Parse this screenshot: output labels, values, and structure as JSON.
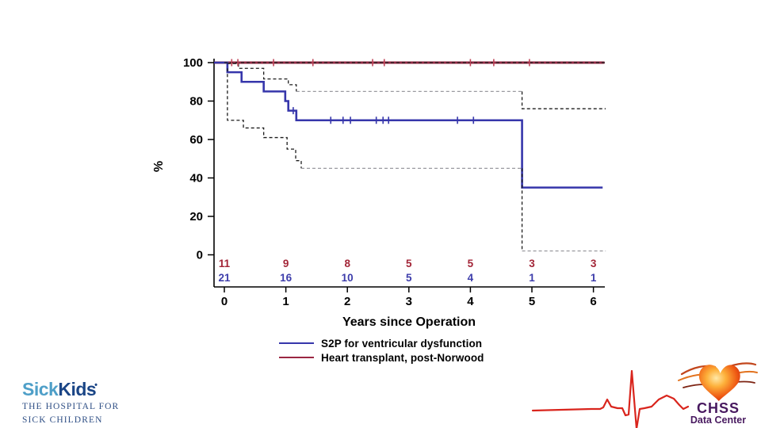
{
  "chart_data": {
    "type": "line",
    "subtype": "kaplan-meier-step",
    "title": "",
    "xlabel": "Years since Operation",
    "ylabel": "%",
    "xlim": [
      0,
      6.3
    ],
    "ylim": [
      0,
      100
    ],
    "xticks": [
      0,
      1,
      2,
      3,
      4,
      5,
      6
    ],
    "yticks": [
      0,
      20,
      40,
      60,
      80,
      100
    ],
    "grid": false,
    "series": [
      {
        "name": "Heart transplant, post-Norwood",
        "data_name": "survival-curve-transplant",
        "color": "#8f2742",
        "censor_color": "#c04458",
        "width": 3,
        "steps": [
          [
            0,
            100
          ]
        ],
        "end_x": 6.18,
        "censor_marks": [
          [
            0.12,
            100
          ],
          [
            0.22,
            100
          ],
          [
            0.8,
            100
          ],
          [
            1.44,
            100
          ],
          [
            2.41,
            100
          ],
          [
            2.6,
            100
          ],
          [
            4.0,
            100
          ],
          [
            4.38,
            100
          ],
          [
            4.96,
            100
          ]
        ]
      },
      {
        "name": "S2P for ventricular dysfunction",
        "data_name": "survival-curve-s2p",
        "color": "#3636ab",
        "censor_color": "#3636ab",
        "width": 2.6,
        "steps": [
          [
            0,
            100
          ],
          [
            0.05,
            95
          ],
          [
            0.28,
            90
          ],
          [
            0.64,
            85
          ],
          [
            0.99,
            80
          ],
          [
            1.04,
            75
          ],
          [
            1.17,
            70
          ],
          [
            4.84,
            35
          ]
        ],
        "end_x": 6.15,
        "censor_marks": [
          [
            1.12,
            75
          ],
          [
            1.73,
            70
          ],
          [
            1.93,
            70
          ],
          [
            2.05,
            70
          ],
          [
            2.47,
            70
          ],
          [
            2.58,
            70
          ],
          [
            2.67,
            70
          ],
          [
            3.79,
            70
          ],
          [
            4.05,
            70
          ]
        ]
      }
    ],
    "confidence_bands": [
      {
        "series": "S2P for ventricular dysfunction",
        "bound": "upper",
        "segments": [
          {
            "color": "#1c1c1c",
            "points": [
              [
                0.05,
                99.5
              ],
              [
                0.23,
                99.5
              ],
              [
                0.23,
                97
              ],
              [
                0.64,
                97
              ],
              [
                0.64,
                91.5
              ],
              [
                1.04,
                91.5
              ],
              [
                1.04,
                88.5
              ],
              [
                1.17,
                88.5
              ],
              [
                1.17,
                85
              ]
            ]
          },
          {
            "color": "#9a9aa0",
            "points": [
              [
                1.17,
                85
              ],
              [
                4.84,
                85
              ]
            ]
          },
          {
            "color": "#1c1c1c",
            "points": [
              [
                4.84,
                85
              ],
              [
                4.84,
                76
              ],
              [
                6.2,
                76
              ]
            ]
          }
        ]
      },
      {
        "series": "S2P for ventricular dysfunction",
        "bound": "lower",
        "segments": [
          {
            "color": "#1c1c1c",
            "points": [
              [
                0.05,
                97
              ],
              [
                0.05,
                70
              ],
              [
                0.31,
                70
              ],
              [
                0.31,
                66
              ],
              [
                0.64,
                66
              ],
              [
                0.64,
                61
              ],
              [
                1.02,
                61
              ],
              [
                1.02,
                55
              ],
              [
                1.16,
                55
              ],
              [
                1.16,
                49
              ],
              [
                1.25,
                49
              ],
              [
                1.25,
                45
              ]
            ]
          },
          {
            "color": "#9a9aa0",
            "points": [
              [
                1.25,
                45
              ],
              [
                4.84,
                45
              ]
            ]
          },
          {
            "color": "#1c1c1c",
            "points": [
              [
                4.84,
                45
              ],
              [
                4.84,
                2
              ]
            ]
          },
          {
            "color": "#9a9aa0",
            "points": [
              [
                4.84,
                2
              ],
              [
                6.2,
                2
              ]
            ]
          }
        ]
      },
      {
        "series": "Heart transplant, post-Norwood",
        "bound": "both",
        "segments": [
          {
            "color": "#1c1c1c",
            "points": [
              [
                0,
                100
              ],
              [
                6.2,
                100
              ]
            ]
          }
        ]
      }
    ],
    "at_risk": {
      "x": [
        0,
        1,
        2,
        3,
        4,
        5,
        6
      ],
      "rows": [
        {
          "series": "Heart transplant, post-Norwood",
          "color": "#a32638",
          "values": [
            11,
            9,
            8,
            5,
            5,
            3,
            3
          ]
        },
        {
          "series": "S2P for ventricular dysfunction",
          "color": "#3d3dab",
          "values": [
            21,
            16,
            10,
            5,
            4,
            1,
            1
          ]
        }
      ]
    },
    "legend": {
      "position": "bottom",
      "entries": [
        {
          "label": "S2P for ventricular dysfunction",
          "color": "#3636ab"
        },
        {
          "label": "Heart transplant, post-Norwood",
          "color": "#9b2742"
        }
      ]
    }
  },
  "footer": {
    "sickkids_logo": {
      "word_part1": "Sick",
      "word_part2": "Kids",
      "trademark_dot": "•",
      "tagline_line1": "THE HOSPITAL FOR",
      "tagline_line2": "SICK CHILDREN",
      "part1_color": "#4e9fc8",
      "part2_color": "#1a4586",
      "tagline_color": "#2f4f85"
    },
    "chss_logo": {
      "line1": "CHSS",
      "line2": "Data Center",
      "text_color": "#48195f",
      "ecg_color": "#d9251d",
      "icon": "heart-ecg"
    }
  }
}
